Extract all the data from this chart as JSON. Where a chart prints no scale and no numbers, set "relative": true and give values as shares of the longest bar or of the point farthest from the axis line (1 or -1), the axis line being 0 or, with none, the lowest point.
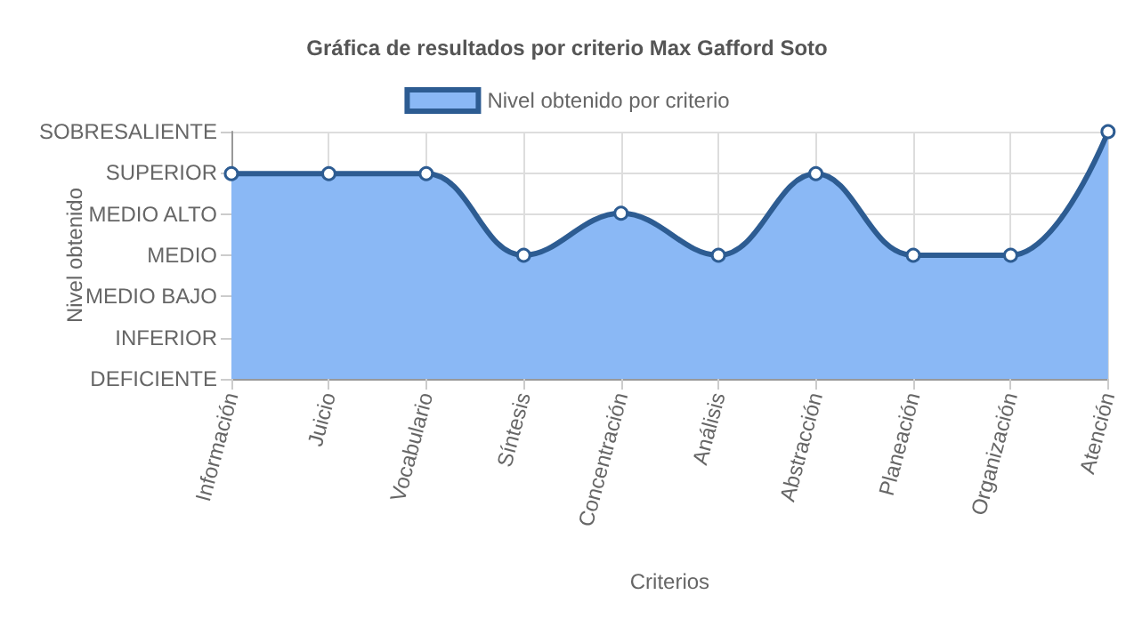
{
  "chart_data": {
    "type": "area",
    "title": "Gráfica de resultados por criterio Max Gafford Soto",
    "xlabel": "Criterios",
    "ylabel": "Nivel obtenido",
    "categories": [
      "Información",
      "Juicio",
      "Vocabulario",
      "Síntesis",
      "Concentración",
      "Análisis",
      "Abstracción",
      "Planeación",
      "Organización",
      "Atención"
    ],
    "y_categories": [
      "SOBRESALIENTE",
      "SUPERIOR",
      "MEDIO ALTO",
      "MEDIO",
      "MEDIO BAJO",
      "INFERIOR",
      "DEFICIENTE"
    ],
    "series": [
      {
        "name": "Nivel obtenido por criterio",
        "color": "#8ab8f5",
        "values": [
          0.83,
          0.83,
          0.83,
          0.5,
          0.67,
          0.5,
          0.83,
          0.5,
          0.5,
          1
        ]
      }
    ],
    "relative": true,
    "grid": true,
    "legend": "top",
    "marker": "circle",
    "line_style": "solid"
  }
}
